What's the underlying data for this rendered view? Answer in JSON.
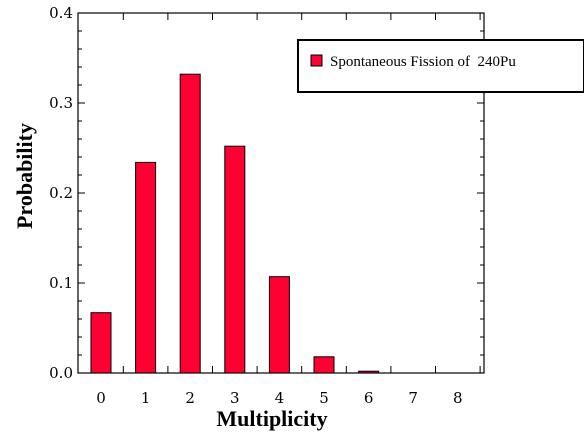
{
  "chart_data": {
    "type": "bar",
    "categories": [
      "0",
      "1",
      "2",
      "3",
      "4",
      "5",
      "6",
      "7",
      "8"
    ],
    "series": [
      {
        "name": "Spontaneous Fission of  240Pu",
        "color": "#ff0033",
        "values": [
          0.067,
          0.234,
          0.332,
          0.252,
          0.107,
          0.018,
          0.002,
          0.0,
          0.0
        ]
      }
    ],
    "xlabel": "Multiplicity",
    "ylabel": "Probability",
    "ylim": [
      0,
      0.4
    ],
    "yticks": [
      "0.0",
      "0.1",
      "0.2",
      "0.3",
      "0.4"
    ],
    "legend_position": "top-right",
    "grid": false
  }
}
